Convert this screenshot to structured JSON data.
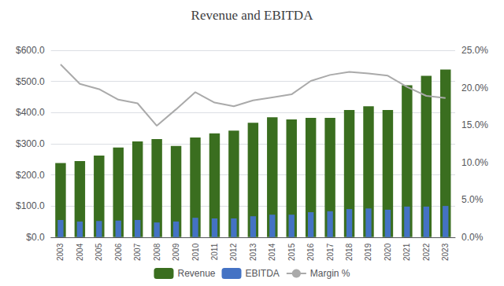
{
  "chart_data": {
    "type": "bar",
    "title": "Revenue and EBITDA",
    "categories": [
      "2003",
      "2004",
      "2005",
      "2006",
      "2007",
      "2008",
      "2009",
      "2010",
      "2011",
      "2012",
      "2013",
      "2014",
      "2015",
      "2016",
      "2017",
      "2018",
      "2019",
      "2020",
      "2021",
      "2022",
      "2023"
    ],
    "series": [
      {
        "name": "Revenue",
        "type": "bar",
        "color": "#3a6e1f",
        "values": [
          238,
          244,
          262,
          288,
          307,
          315,
          293,
          320,
          333,
          342,
          367,
          385,
          378,
          383,
          383,
          408,
          420,
          408,
          488,
          518,
          538
        ]
      },
      {
        "name": "EBITDA",
        "type": "bar",
        "color": "#4472c4",
        "values": [
          55,
          50,
          52,
          53,
          55,
          47,
          50,
          62,
          60,
          60,
          67,
          72,
          72,
          80,
          83,
          90,
          92,
          88,
          98,
          98,
          100
        ]
      },
      {
        "name": "Margin %",
        "type": "line",
        "axis": "y2",
        "color": "#aaaaaa",
        "values": [
          0.231,
          0.205,
          0.198,
          0.184,
          0.179,
          0.149,
          0.171,
          0.194,
          0.18,
          0.175,
          0.183,
          0.187,
          0.191,
          0.209,
          0.217,
          0.221,
          0.219,
          0.216,
          0.201,
          0.189,
          0.186
        ]
      }
    ],
    "ylim": [
      0,
      600
    ],
    "yticks": [
      {
        "value": 0,
        "label": "$0.0"
      },
      {
        "value": 100,
        "label": "$100.0"
      },
      {
        "value": 200,
        "label": "$200.0"
      },
      {
        "value": 300,
        "label": "$300.0"
      },
      {
        "value": 400,
        "label": "$400.0"
      },
      {
        "value": 500,
        "label": "$500.0"
      },
      {
        "value": 600,
        "label": "$600.0"
      }
    ],
    "y2lim": [
      0,
      0.25
    ],
    "y2ticks": [
      {
        "value": 0.0,
        "label": "0.0%"
      },
      {
        "value": 0.05,
        "label": "5.0%"
      },
      {
        "value": 0.1,
        "label": "10.0%"
      },
      {
        "value": 0.15,
        "label": "15.0%"
      },
      {
        "value": 0.2,
        "label": "20.0%"
      },
      {
        "value": 0.25,
        "label": "25.0%"
      }
    ],
    "grid": true,
    "legend": "bottom"
  }
}
